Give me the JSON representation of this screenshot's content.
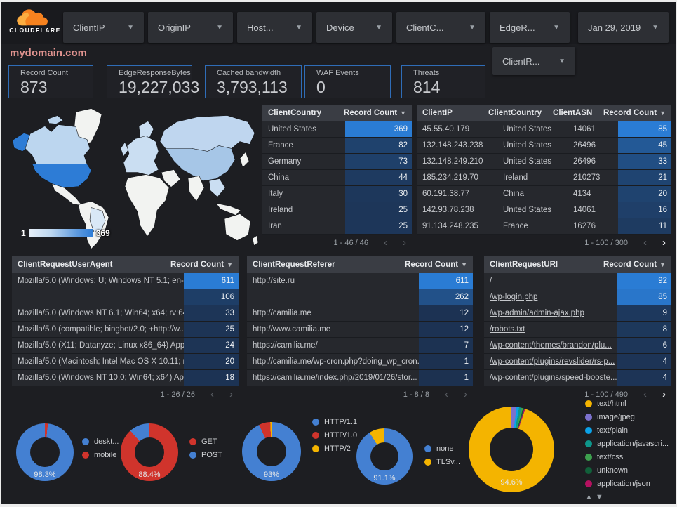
{
  "brand": {
    "name": "CLOUDFLARE"
  },
  "title": "mydomain.com",
  "filters": [
    {
      "label": "ClientIP"
    },
    {
      "label": "OriginIP"
    },
    {
      "label": "Host..."
    },
    {
      "label": "Device"
    },
    {
      "label": "ClientC..."
    },
    {
      "label": "EdgeR..."
    }
  ],
  "filters_row2": [
    {
      "label": "ClientR..."
    }
  ],
  "date_filter": {
    "label": "Jan 29, 2019"
  },
  "scorecards": [
    {
      "label": "Record Count",
      "value": "873"
    },
    {
      "label": "EdgeResponseBytes",
      "value": "19,227,033"
    },
    {
      "label": "Cached bandwidth",
      "value": "3,793,113"
    },
    {
      "label": "WAF Events",
      "value": "0"
    },
    {
      "label": "Threats",
      "value": "814"
    }
  ],
  "map": {
    "legend_min": "1",
    "legend_max": "369"
  },
  "colors": {
    "accent_blue": "#2d7cd6",
    "bar_low": "#1c3150",
    "bar_high": "#2a7cd4",
    "donut_blue": "#4480d2",
    "donut_red": "#d0342c",
    "donut_yellow": "#f4b400"
  },
  "tables": {
    "client_country": {
      "columns": [
        "ClientCountry",
        "Record Count"
      ],
      "sort_icon": "▼",
      "max": 369,
      "rows": [
        {
          "cells": [
            "United States"
          ],
          "value": 369
        },
        {
          "cells": [
            "France"
          ],
          "value": 82
        },
        {
          "cells": [
            "Germany"
          ],
          "value": 73
        },
        {
          "cells": [
            "China"
          ],
          "value": 44
        },
        {
          "cells": [
            "Italy"
          ],
          "value": 30
        },
        {
          "cells": [
            "Ireland"
          ],
          "value": 25
        },
        {
          "cells": [
            "Iran"
          ],
          "value": 25
        }
      ],
      "pagination": {
        "label": "1 - 46 / 46",
        "prev_enabled": false,
        "next_enabled": false
      }
    },
    "client_ip": {
      "columns": [
        "ClientIP",
        "ClientCountry",
        "ClientASN",
        "Record Count"
      ],
      "sort_icon": "▼",
      "max": 85,
      "rows": [
        {
          "cells": [
            "45.55.40.179",
            "United States",
            "14061"
          ],
          "value": 85
        },
        {
          "cells": [
            "132.148.243.238",
            "United States",
            "26496"
          ],
          "value": 45
        },
        {
          "cells": [
            "132.148.249.210",
            "United States",
            "26496"
          ],
          "value": 33
        },
        {
          "cells": [
            "185.234.219.70",
            "Ireland",
            "210273"
          ],
          "value": 21
        },
        {
          "cells": [
            "60.191.38.77",
            "China",
            "4134"
          ],
          "value": 20
        },
        {
          "cells": [
            "142.93.78.238",
            "United States",
            "14061"
          ],
          "value": 16
        },
        {
          "cells": [
            "91.134.248.235",
            "France",
            "16276"
          ],
          "value": 11
        }
      ],
      "pagination": {
        "label": "1 - 100 / 300",
        "prev_enabled": false,
        "next_enabled": true
      }
    },
    "user_agent": {
      "columns": [
        "ClientRequestUserAgent",
        "Record Count"
      ],
      "sort_icon": "▼",
      "max": 611,
      "rows": [
        {
          "cells": [
            "Mozilla/5.0 (Windows; U; Windows NT 5.1; en-U..."
          ],
          "value": 611
        },
        {
          "cells": [
            ""
          ],
          "value": 106
        },
        {
          "cells": [
            "Mozilla/5.0 (Windows NT 6.1; Win64; x64; rv:64..."
          ],
          "value": 33
        },
        {
          "cells": [
            "Mozilla/5.0 (compatible; bingbot/2.0; +http://w..."
          ],
          "value": 25
        },
        {
          "cells": [
            "Mozilla/5.0 (X11; Datanyze; Linux x86_64) Appl..."
          ],
          "value": 24
        },
        {
          "cells": [
            "Mozilla/5.0 (Macintosh; Intel Mac OS X 10.11; r..."
          ],
          "value": 20
        },
        {
          "cells": [
            "Mozilla/5.0 (Windows NT 10.0; Win64; x64) App..."
          ],
          "value": 18
        }
      ],
      "pagination": {
        "label": "1 - 26 / 26",
        "prev_enabled": false,
        "next_enabled": false
      }
    },
    "referer": {
      "columns": [
        "ClientRequestReferer",
        "Record Count"
      ],
      "sort_icon": "▼",
      "max": 611,
      "rows": [
        {
          "cells": [
            "http://site.ru"
          ],
          "value": 611
        },
        {
          "cells": [
            ""
          ],
          "value": 262
        },
        {
          "cells": [
            "http://camilia.me"
          ],
          "value": 12
        },
        {
          "cells": [
            "http://www.camilia.me"
          ],
          "value": 12
        },
        {
          "cells": [
            "https://camilia.me/"
          ],
          "value": 7
        },
        {
          "cells": [
            "http://camilia.me/wp-cron.php?doing_wp_cron..."
          ],
          "value": 1
        },
        {
          "cells": [
            "https://camilia.me/index.php/2019/01/26/stor..."
          ],
          "value": 1
        }
      ],
      "pagination": {
        "label": "1 - 8 / 8",
        "prev_enabled": false,
        "next_enabled": false
      }
    },
    "uri": {
      "columns": [
        "ClientRequestURI",
        "Record Count"
      ],
      "sort_icon": "▼",
      "link_style": true,
      "max": 92,
      "rows": [
        {
          "cells": [
            "/"
          ],
          "value": 92
        },
        {
          "cells": [
            "/wp-login.php"
          ],
          "value": 85
        },
        {
          "cells": [
            "/wp-admin/admin-ajax.php"
          ],
          "value": 9
        },
        {
          "cells": [
            "/robots.txt"
          ],
          "value": 8
        },
        {
          "cells": [
            "/wp-content/themes/brandon/plu..."
          ],
          "value": 6
        },
        {
          "cells": [
            "/wp-content/plugins/revslider/rs-p..."
          ],
          "value": 4
        },
        {
          "cells": [
            "/wp-content/plugins/speed-booste..."
          ],
          "value": 4
        }
      ],
      "pagination": {
        "label": "1 - 100 / 490",
        "prev_enabled": false,
        "next_enabled": true
      }
    }
  },
  "donuts": [
    {
      "name": "device-type",
      "percent_label": "98.3%",
      "rotation": 6,
      "slices": [
        {
          "label": "deskt...",
          "value": 98.3,
          "color": "#4480d2"
        },
        {
          "label": "mobile",
          "value": 1.7,
          "color": "#d0342c"
        }
      ]
    },
    {
      "name": "http-method",
      "percent_label": "88.4%",
      "rotation": 0,
      "slices": [
        {
          "label": "GET",
          "value": 88.4,
          "color": "#d0342c"
        },
        {
          "label": "POST",
          "value": 11.6,
          "color": "#4480d2"
        }
      ]
    },
    {
      "name": "http-version",
      "percent_label": "93%",
      "rotation": 0,
      "slices": [
        {
          "label": "HTTP/1.1",
          "value": 93,
          "color": "#4480d2"
        },
        {
          "label": "HTTP/1.0",
          "value": 6.3,
          "color": "#d0342c"
        },
        {
          "label": "HTTP/2",
          "value": 0.7,
          "color": "#f4b400"
        }
      ]
    },
    {
      "name": "tls-version",
      "percent_label": "91.1%",
      "rotation": 0,
      "slices": [
        {
          "label": "none",
          "value": 91.1,
          "color": "#4480d2"
        },
        {
          "label": "TLSv...",
          "value": 8.9,
          "color": "#f4b400"
        }
      ]
    },
    {
      "name": "content-type",
      "percent_label": "94.6%",
      "rotation": 19,
      "legend_pager": true,
      "slices": [
        {
          "label": "text/html",
          "value": 94.6,
          "color": "#f4b400"
        },
        {
          "label": "image/jpeg",
          "value": 2.0,
          "color": "#7c71cd"
        },
        {
          "label": "text/plain",
          "value": 1.0,
          "color": "#0ba2e8"
        },
        {
          "label": "application/javascri...",
          "value": 0.9,
          "color": "#0e968b"
        },
        {
          "label": "text/css",
          "value": 0.6,
          "color": "#3da04e"
        },
        {
          "label": "unknown",
          "value": 0.5,
          "color": "#11603a"
        },
        {
          "label": "application/json",
          "value": 0.4,
          "color": "#b51160"
        }
      ]
    }
  ],
  "pager_icons": {
    "up": "▲",
    "down": "▼",
    "prev": "‹",
    "next": "›"
  }
}
